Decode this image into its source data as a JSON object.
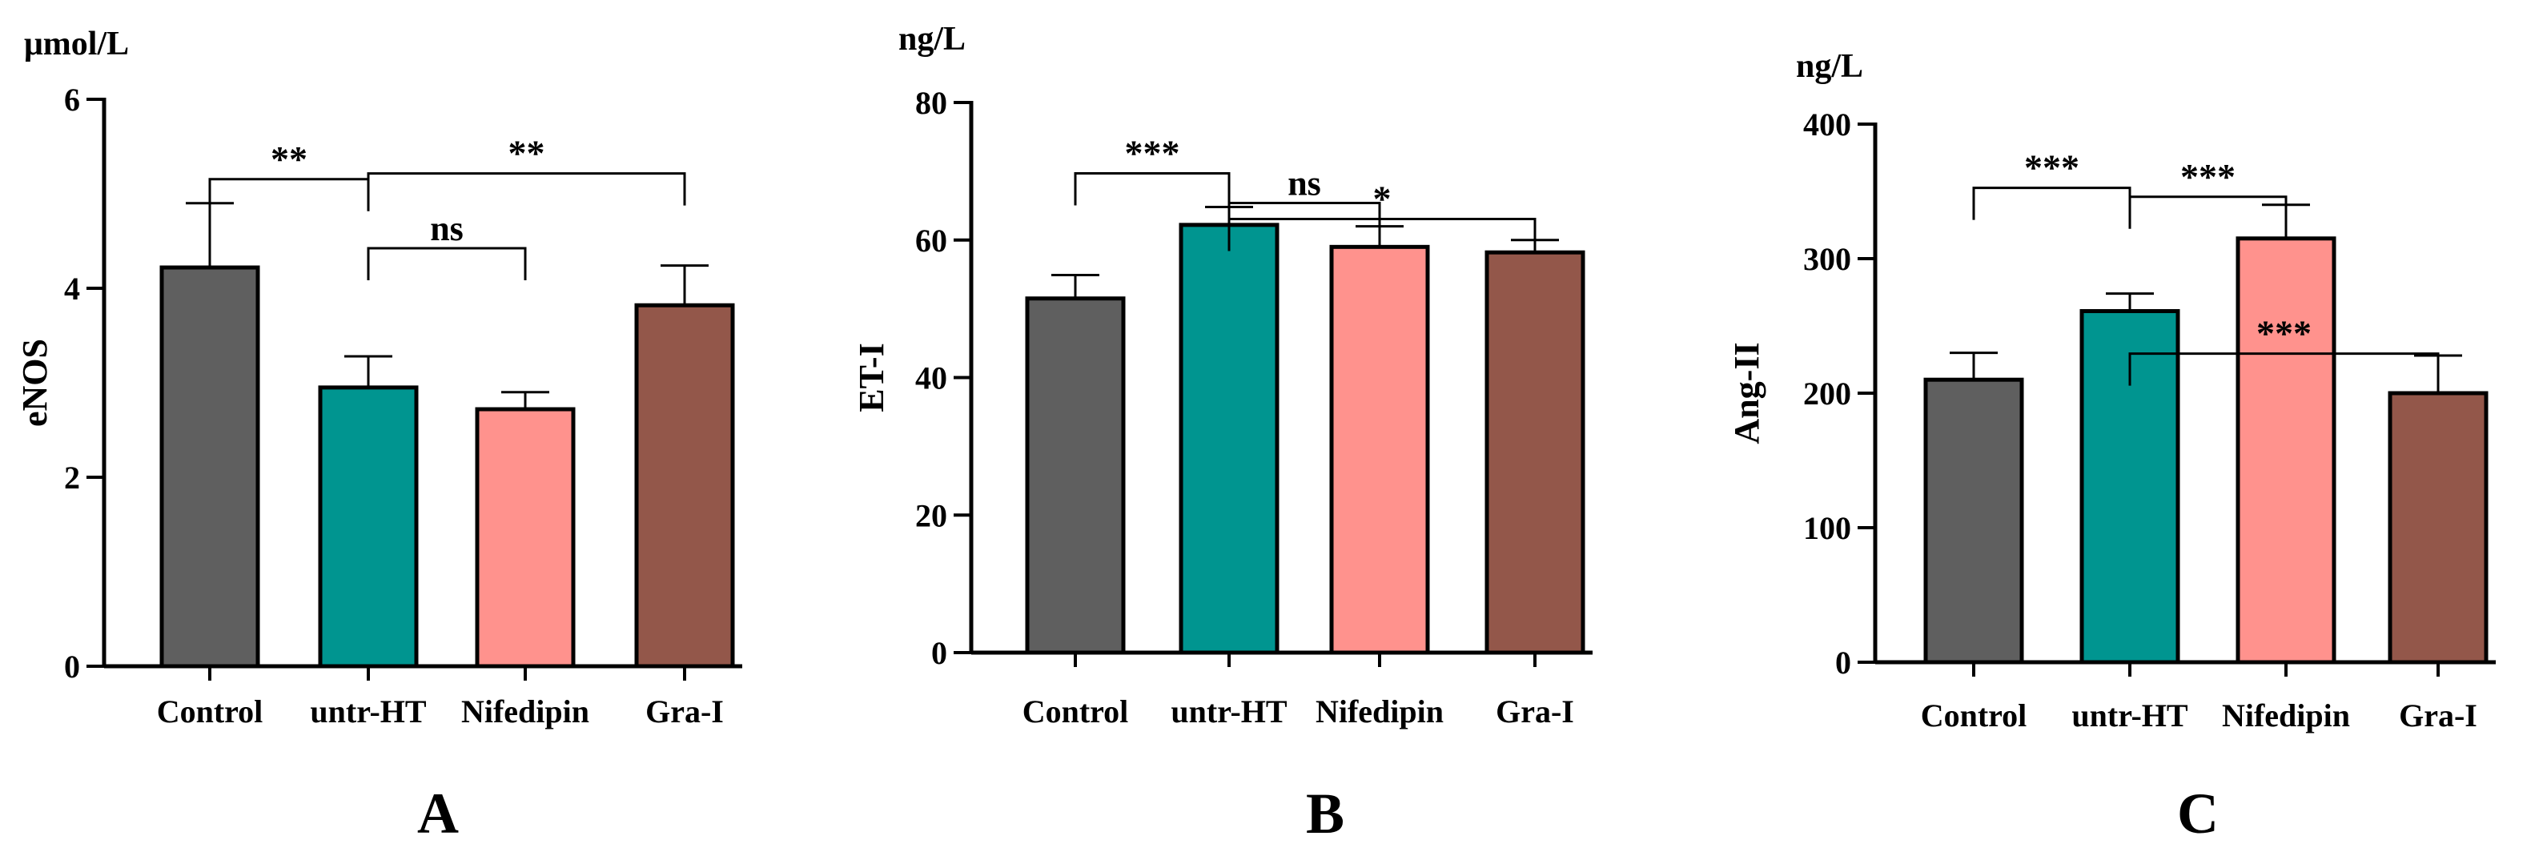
{
  "chart_data": [
    {
      "panel": "A",
      "type": "bar",
      "unit": "μmol/L",
      "ylabel": "eNOS",
      "categories": [
        "Control",
        "untr-HT",
        "Nifedipin",
        "Gra-I"
      ],
      "values": [
        4.22,
        2.95,
        2.72,
        3.82
      ],
      "errors": [
        0.68,
        0.33,
        0.18,
        0.42
      ],
      "colors": [
        "#5f5f5f",
        "#009590",
        "#ff928d",
        "#93574a"
      ],
      "ylim": [
        0,
        6
      ],
      "yticks": [
        "0",
        "2",
        "4",
        "6"
      ],
      "comparisons": [
        {
          "a": 0,
          "b": 1,
          "label": "**"
        },
        {
          "a": 1,
          "b": 2,
          "label": "ns"
        },
        {
          "a": 1,
          "b": 3,
          "label": "**"
        }
      ]
    },
    {
      "panel": "B",
      "type": "bar",
      "unit": "ng/L",
      "ylabel": "ET-I",
      "categories": [
        "Control",
        "untr-HT",
        "Nifedipin",
        "Gra-I"
      ],
      "values": [
        51.5,
        62.2,
        59.0,
        58.2
      ],
      "errors": [
        3.4,
        2.6,
        3.0,
        1.8
      ],
      "colors": [
        "#5f5f5f",
        "#009590",
        "#ff928d",
        "#93574a"
      ],
      "ylim": [
        0,
        80
      ],
      "yticks": [
        "0",
        "20",
        "40",
        "60",
        "80"
      ],
      "comparisons": [
        {
          "a": 0,
          "b": 1,
          "label": "***"
        },
        {
          "a": 1,
          "b": 2,
          "label": "ns"
        },
        {
          "a": 1,
          "b": 3,
          "label": "*"
        }
      ]
    },
    {
      "panel": "C",
      "type": "bar",
      "unit": "ng/L",
      "ylabel": "Ang-II",
      "categories": [
        "Control",
        "untr-HT",
        "Nifedipin",
        "Gra-I"
      ],
      "values": [
        210,
        261,
        315,
        200
      ],
      "errors": [
        20,
        13,
        25,
        28
      ],
      "colors": [
        "#5f5f5f",
        "#009590",
        "#ff928d",
        "#93574a"
      ],
      "ylim": [
        0,
        400
      ],
      "yticks": [
        "0",
        "100",
        "200",
        "300",
        "400"
      ],
      "comparisons": [
        {
          "a": 0,
          "b": 1,
          "label": "***"
        },
        {
          "a": 1,
          "b": 2,
          "label": "***"
        },
        {
          "a": 1,
          "b": 3,
          "label": "***"
        }
      ]
    }
  ]
}
